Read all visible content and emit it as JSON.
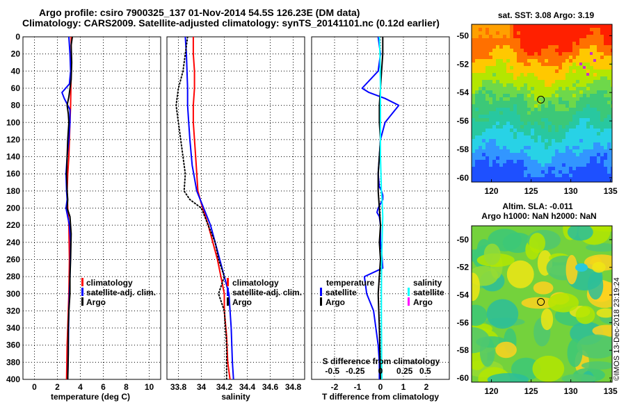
{
  "header": {
    "line1": "Argo profile: csiro 7900325_137 01-Nov-2014 54.5S 126.23E (DM data)",
    "line2": "Climatology: CARS2009. Satellite-adjusted climatology: synTS_20141101.nc (0.12d earlier)"
  },
  "watermark": "©IMOS 13-Dec-2018 23:19:24",
  "colors": {
    "climatology": "#ff0000",
    "satellite": "#0000ff",
    "argo": "#000000",
    "sal_satellite": "#00ffff",
    "sal_argo": "#ff00ff"
  },
  "chart_data": [
    {
      "type": "line",
      "name": "temperature-panel",
      "xlabel": "temperature (deg C)",
      "ylabel": "",
      "xlim": [
        -1,
        11
      ],
      "ylim": [
        400,
        0
      ],
      "xticks": [
        0,
        2,
        4,
        6,
        8,
        10
      ],
      "xticklabels": [
        "0",
        "2",
        "4",
        "6",
        "8",
        "10"
      ],
      "yticks": [
        0,
        20,
        40,
        60,
        80,
        100,
        120,
        140,
        160,
        180,
        200,
        220,
        240,
        260,
        280,
        300,
        320,
        340,
        360,
        380,
        400
      ],
      "yticklabels": [
        "0",
        "20",
        "40",
        "60",
        "80",
        "100",
        "120",
        "140",
        "160",
        "180",
        "200",
        "220",
        "240",
        "260",
        "280",
        "300",
        "320",
        "340",
        "360",
        "380",
        "400"
      ],
      "legend": [
        "climatology",
        "satellite-adj. clim.",
        "Argo"
      ],
      "series": [
        {
          "name": "climatology",
          "color": "#ff0000",
          "dotted": false,
          "x": [
            3.2,
            3.2,
            3.15,
            3.1,
            3.05,
            3.0,
            2.9,
            2.85,
            2.9,
            3.0,
            3.05,
            3.0,
            2.95,
            2.9,
            2.85,
            2.8
          ],
          "y": [
            0,
            40,
            80,
            100,
            120,
            140,
            160,
            180,
            200,
            220,
            260,
            300,
            320,
            340,
            360,
            400
          ]
        },
        {
          "name": "satellite-adj. clim.",
          "color": "#0000ff",
          "dotted": false,
          "x": [
            3.0,
            3.1,
            3.15,
            3.05,
            2.4,
            2.6,
            3.1,
            3.1,
            3.0,
            2.85,
            2.75,
            2.8,
            2.85,
            2.75,
            3.05,
            3.15,
            3.1,
            3.05,
            3.0,
            2.95,
            2.9
          ],
          "y": [
            0,
            20,
            40,
            55,
            65,
            72,
            85,
            100,
            120,
            140,
            160,
            180,
            190,
            200,
            220,
            240,
            280,
            300,
            320,
            360,
            400
          ]
        },
        {
          "name": "Argo",
          "color": "#000000",
          "dotted": false,
          "x": [
            3.3,
            3.2,
            3.25,
            3.2,
            3.0,
            2.85,
            2.95,
            3.0,
            2.9,
            2.85,
            2.8,
            2.85,
            2.9,
            2.85,
            3.1,
            3.2,
            3.15,
            3.1,
            3.1,
            3.0,
            2.95,
            2.95,
            2.9
          ],
          "y": [
            0,
            10,
            30,
            50,
            70,
            80,
            90,
            100,
            120,
            140,
            160,
            180,
            190,
            200,
            210,
            230,
            260,
            280,
            300,
            320,
            340,
            370,
            400
          ]
        }
      ]
    },
    {
      "type": "line",
      "name": "salinity-panel",
      "xlabel": "salinity",
      "ylabel": "",
      "xlim": [
        33.7,
        34.9
      ],
      "ylim": [
        400,
        0
      ],
      "xticks": [
        33.8,
        34.0,
        34.2,
        34.4,
        34.6,
        34.8
      ],
      "xticklabels": [
        "33.8",
        "34",
        "34.2",
        "34.4",
        "34.6",
        "34.8"
      ],
      "legend": [
        "climatology",
        "satellite-adj. clim.",
        "Argo"
      ],
      "series": [
        {
          "name": "climatology",
          "color": "#ff0000",
          "dotted": false,
          "x": [
            33.93,
            33.93,
            33.94,
            33.94,
            33.93,
            33.93,
            33.95,
            33.97,
            34.0,
            34.06,
            34.1,
            34.14,
            34.17,
            34.2,
            34.2,
            34.22,
            34.23,
            34.25
          ],
          "y": [
            0,
            20,
            40,
            60,
            80,
            100,
            140,
            180,
            195,
            220,
            240,
            260,
            280,
            300,
            320,
            350,
            380,
            400
          ]
        },
        {
          "name": "satellite-adj. clim.",
          "color": "#0000ff",
          "dotted": false,
          "x": [
            33.86,
            33.87,
            33.88,
            33.88,
            33.89,
            33.9,
            33.92,
            33.96,
            34.02,
            34.08,
            34.12,
            34.16,
            34.2,
            34.24,
            34.26,
            34.27,
            34.28
          ],
          "y": [
            0,
            20,
            60,
            80,
            100,
            120,
            150,
            180,
            200,
            220,
            240,
            260,
            280,
            300,
            340,
            380,
            400
          ]
        },
        {
          "name": "Argo",
          "color": "#000000",
          "dotted": true,
          "x": [
            33.88,
            33.86,
            33.84,
            33.8,
            33.78,
            33.8,
            33.82,
            33.84,
            33.86,
            33.85,
            33.9,
            34.0,
            34.06,
            34.12,
            34.15,
            34.2,
            34.15,
            34.2,
            34.22,
            34.22
          ],
          "y": [
            0,
            20,
            40,
            60,
            80,
            100,
            120,
            140,
            160,
            180,
            190,
            200,
            220,
            240,
            260,
            280,
            300,
            320,
            360,
            400
          ]
        }
      ]
    },
    {
      "type": "line",
      "name": "difference-panel",
      "xlabel": "T difference from climatology",
      "ylabel": "",
      "xlim": [
        -3,
        3
      ],
      "ylim": [
        400,
        0
      ],
      "xticks": [
        -2,
        -1,
        0,
        1,
        2
      ],
      "xticklabels": [
        "-2",
        "-1",
        "0",
        "1",
        "2"
      ],
      "x2label": "S difference from climatology",
      "x2ticklabels": [
        "-0.5",
        "-0.25",
        "0",
        "0.25",
        "0.5"
      ],
      "legend_temperature_title": "temperature",
      "legend_salinity_title": "salinity",
      "legend_temperature": [
        "satellite",
        "Argo"
      ],
      "legend_salinity": [
        "satellite",
        "Argo"
      ],
      "series": [
        {
          "name": "temperature satellite",
          "color": "#0000ff",
          "dotted": false,
          "x": [
            -0.1,
            0.0,
            -0.1,
            -0.8,
            -0.5,
            0.2,
            0.8,
            0.5,
            0.2,
            0.0,
            -0.05,
            -0.1,
            -0.05,
            0.05,
            0.1,
            0.1,
            0.0,
            -0.1,
            -0.15,
            -0.05,
            0.0,
            0.0,
            0.05,
            0.1,
            -0.7,
            -0.6,
            -0.3,
            -0.2,
            -0.1,
            -0.05,
            -0.05
          ],
          "y": [
            0,
            20,
            40,
            60,
            65,
            72,
            80,
            90,
            100,
            120,
            140,
            160,
            175,
            180,
            185,
            190,
            195,
            200,
            205,
            210,
            220,
            240,
            250,
            270,
            280,
            300,
            320,
            340,
            360,
            380,
            400
          ]
        },
        {
          "name": "temperature Argo",
          "color": "#000000",
          "dotted": false,
          "x": [
            0.1,
            0.1,
            0.05,
            0.0,
            -0.05,
            -0.05,
            0.0,
            -0.05,
            -0.1,
            -0.1,
            -0.05,
            0.0,
            -0.05,
            0.0,
            -0.1,
            -0.05,
            0.0
          ],
          "y": [
            0,
            20,
            40,
            60,
            80,
            100,
            120,
            140,
            160,
            180,
            200,
            220,
            240,
            260,
            300,
            340,
            400
          ]
        },
        {
          "name": "salinity satellite",
          "color": "#00ffff",
          "dotted": false,
          "x": [
            -0.05,
            -0.02,
            0.0,
            0.0,
            0.0,
            0.02,
            0.04,
            0.07,
            0.1,
            0.08,
            0.06,
            0.05,
            0.04,
            0.04,
            0.05,
            0.05,
            0.06
          ],
          "y": [
            0,
            20,
            60,
            100,
            140,
            160,
            180,
            190,
            210,
            230,
            250,
            270,
            300,
            330,
            360,
            380,
            400
          ]
        },
        {
          "name": "salinity Argo",
          "color": "#ff00ff",
          "dotted": false,
          "x": [],
          "y": []
        }
      ]
    }
  ],
  "maps": {
    "sst": {
      "title": "sat. SST: 3.08 Argo: 3.19",
      "xticklabels": [
        "120",
        "125",
        "130",
        "135"
      ],
      "yticklabels": [
        "-50",
        "-52",
        "-54",
        "-56",
        "-58",
        "-60"
      ],
      "profile_lon": 126.23,
      "profile_lat": -54.5
    },
    "sla": {
      "title1": "Altim. SLA: -0.011",
      "title2": "Argo h1000: NaN h2000: NaN",
      "xticklabels": [
        "120",
        "125",
        "130",
        "135"
      ],
      "yticklabels": [
        "-50",
        "-52",
        "-54",
        "-56",
        "-58",
        "-60"
      ],
      "profile_lon": 126.23,
      "profile_lat": -54.5
    }
  }
}
